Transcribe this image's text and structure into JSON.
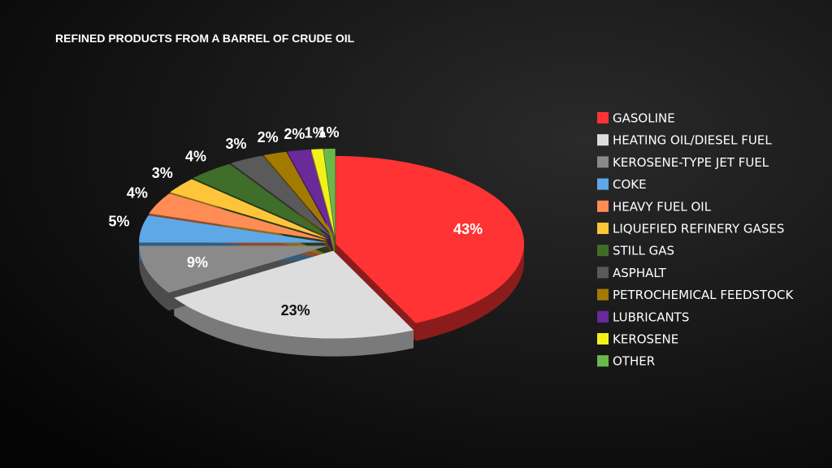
{
  "chart_data": {
    "type": "pie",
    "title": "REFINED PRODUCTS FROM A BARREL OF CRUDE OIL",
    "categories": [
      "GASOLINE",
      "HEATING OIL/DIESEL FUEL",
      "KEROSENE-TYPE JET FUEL",
      "COKE",
      "HEAVY FUEL OIL",
      "LIQUEFIED REFINERY GASES",
      "STILL GAS",
      "ASPHALT",
      "PETROCHEMICAL FEEDSTOCK",
      "LUBRICANTS",
      "KEROSENE",
      "OTHER"
    ],
    "values": [
      43,
      23,
      9,
      5,
      4,
      3,
      4,
      3,
      2,
      2,
      1,
      1
    ],
    "value_labels": [
      "43%",
      "23%",
      "9%",
      "5%",
      "4%",
      "3%",
      "4%",
      "3%",
      "2%",
      "2%",
      "1%",
      "1%"
    ],
    "colors": [
      "#ff3333",
      "#dddddd",
      "#8a8a8a",
      "#5fa8e8",
      "#ff8c55",
      "#ffc53a",
      "#3f6e2a",
      "#5a5a5a",
      "#a37a00",
      "#6a2a9a",
      "#f2f21a",
      "#6ab84a"
    ]
  }
}
